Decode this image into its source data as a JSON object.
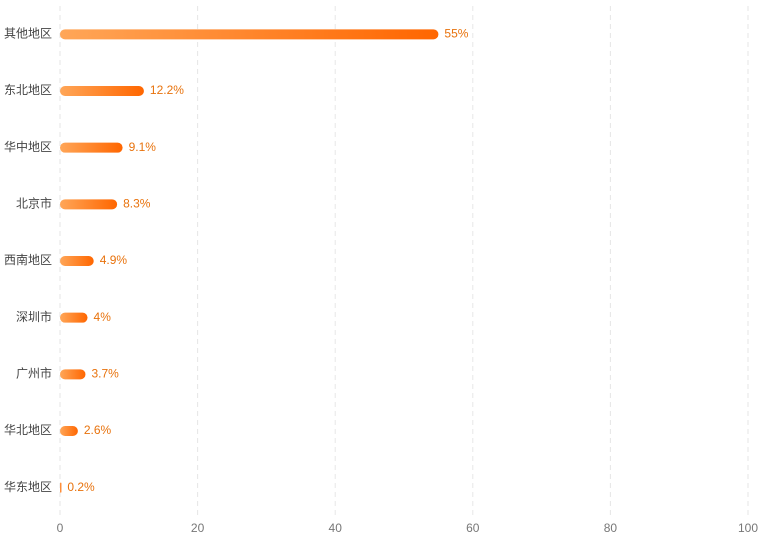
{
  "chart_data": {
    "type": "hbar",
    "categories": [
      "其他地区",
      "东北地区",
      "华中地区",
      "北京市",
      "西南地区",
      "深圳市",
      "广州市",
      "华北地区",
      "华东地区"
    ],
    "values": [
      55,
      12.2,
      9.1,
      8.3,
      4.9,
      4,
      3.7,
      2.6,
      0.2
    ],
    "value_labels": [
      "55%",
      "12.2%",
      "9.1%",
      "8.3%",
      "4.9%",
      "4%",
      "3.7%",
      "2.6%",
      "0.2%"
    ],
    "gradient": [
      "#ffa658",
      "#ff6600"
    ],
    "label_color": "#e8720c",
    "xlim": [
      0,
      100
    ],
    "xticks": [
      0,
      20,
      40,
      60,
      80,
      100
    ],
    "grid": true
  }
}
